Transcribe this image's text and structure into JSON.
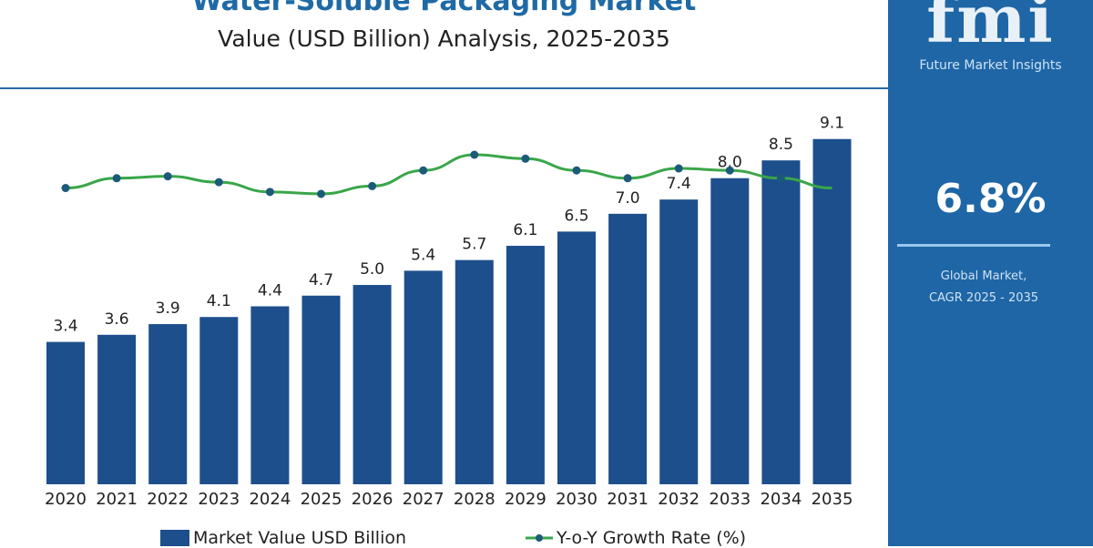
{
  "chart_data": {
    "type": "bar",
    "title": "Water-Soluble Packaging Market",
    "subtitle": "Value (USD Billion) Analysis, 2025-2035",
    "categories": [
      "2020",
      "2021",
      "2022",
      "2023",
      "2024",
      "2025",
      "2026",
      "2027",
      "2028",
      "2029",
      "2030",
      "2031",
      "2032",
      "2033",
      "2034",
      "2035"
    ],
    "series": [
      {
        "name": "Market Value USD Billion",
        "type": "bar",
        "color": "#1d4f8c",
        "values": [
          3.4,
          3.6,
          3.9,
          4.1,
          4.4,
          4.7,
          5.0,
          5.4,
          5.7,
          6.1,
          6.5,
          7.0,
          7.4,
          8.0,
          8.5,
          9.1
        ]
      },
      {
        "name": "Y-o-Y Growth Rate (%)",
        "type": "line",
        "color": "#3aa64a",
        "marker_color": "#1c5a7a",
        "values": [
          6.3,
          6.8,
          6.9,
          6.6,
          6.1,
          6.0,
          6.4,
          7.2,
          8.0,
          7.8,
          7.2,
          6.8,
          7.3,
          7.2,
          6.8,
          6.3
        ]
      }
    ],
    "ylim": [
      -0.6,
      10
    ],
    "y_axis_shown": false,
    "grid": false,
    "data_labels": true,
    "legend_position": "bottom"
  },
  "panel": {
    "logo_text": "fmi",
    "brand": "Future Market Insights",
    "cagr_value": "6.8%",
    "cagr_label_1": "Global Market,",
    "cagr_label_2": "CAGR 2025 - 2035",
    "bg_color": "#1e66a6"
  }
}
